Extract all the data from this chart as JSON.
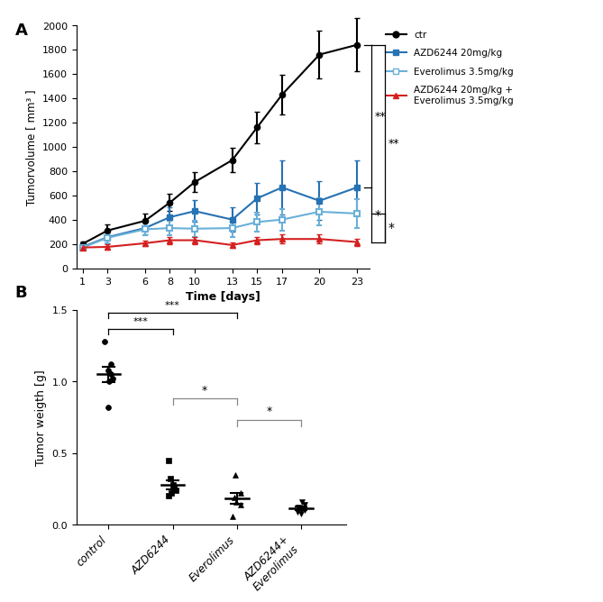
{
  "panel_A": {
    "days": [
      1,
      3,
      6,
      8,
      10,
      13,
      15,
      17,
      20,
      23
    ],
    "ctr_mean": [
      200,
      310,
      390,
      540,
      710,
      890,
      1160,
      1430,
      1760,
      1840
    ],
    "ctr_err": [
      20,
      50,
      60,
      70,
      80,
      100,
      130,
      160,
      200,
      220
    ],
    "azd_mean": [
      175,
      255,
      330,
      420,
      470,
      400,
      575,
      665,
      555,
      665
    ],
    "azd_err": [
      15,
      50,
      55,
      80,
      90,
      100,
      130,
      220,
      160,
      220
    ],
    "eve_mean": [
      170,
      250,
      320,
      330,
      325,
      330,
      380,
      400,
      465,
      450
    ],
    "eve_err": [
      15,
      45,
      50,
      60,
      65,
      70,
      80,
      90,
      110,
      120
    ],
    "combo_mean": [
      170,
      175,
      205,
      230,
      230,
      190,
      230,
      240,
      240,
      215
    ],
    "combo_err": [
      15,
      20,
      25,
      30,
      30,
      25,
      30,
      35,
      35,
      30
    ],
    "ylabel": "Tumorvolume [ mm³ ]",
    "xlabel": "Time [days]",
    "ylim": [
      0,
      2000
    ],
    "yticks": [
      0,
      200,
      400,
      600,
      800,
      1000,
      1200,
      1400,
      1600,
      1800,
      2000
    ],
    "legend_labels": [
      "ctr",
      "AZD6244 20mg/kg",
      "Everolimus 3.5mg/kg",
      "AZD6244 20mg/kg +\nEverolimus 3.5mg/kg"
    ],
    "ctr_color": "#000000",
    "azd_color": "#2672b3",
    "eve_color": "#6ab0d8",
    "combo_color": "#d42020"
  },
  "panel_B": {
    "categories": [
      "control",
      "AZD6244",
      "Everolimus",
      "AZD6244+\nEverolimus"
    ],
    "control_pts": [
      1.28,
      1.12,
      1.08,
      1.05,
      1.02,
      1.0,
      0.82
    ],
    "control_mean": 1.05,
    "control_sem": 0.055,
    "azd_pts": [
      0.45,
      0.32,
      0.28,
      0.26,
      0.24,
      0.22,
      0.2
    ],
    "azd_mean": 0.28,
    "azd_sem": 0.032,
    "eve_pts": [
      0.35,
      0.22,
      0.19,
      0.16,
      0.14,
      0.06
    ],
    "eve_mean": 0.185,
    "eve_sem": 0.04,
    "combo_pts": [
      0.16,
      0.14,
      0.12,
      0.11,
      0.1,
      0.09,
      0.08
    ],
    "combo_mean": 0.114,
    "combo_sem": 0.012,
    "ylabel": "Tumor weigth [g]",
    "ylim": [
      0.0,
      1.5
    ],
    "yticks": [
      0.0,
      0.5,
      1.0,
      1.5
    ]
  }
}
